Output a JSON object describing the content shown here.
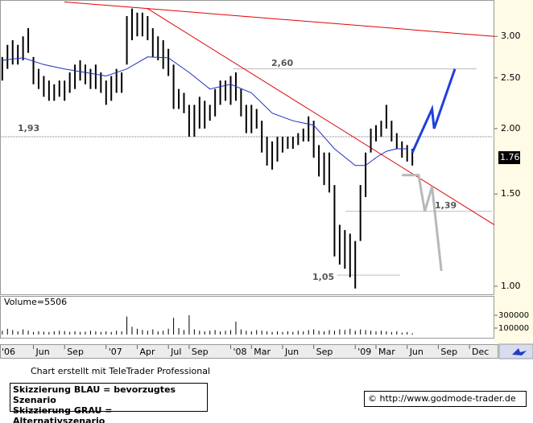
{
  "chart_data": {
    "type": "stock",
    "log": true,
    "x": [
      2,
      2.5,
      3,
      3.5,
      4,
      4.5,
      5,
      5.5,
      6,
      6.5,
      7,
      7.5,
      8,
      8.5,
      9,
      9.5,
      10,
      10.5,
      11,
      11.5,
      12,
      12.5,
      13,
      13.5,
      14,
      14.5,
      15,
      15.5,
      16,
      16.5,
      17,
      17.5,
      18,
      18.5,
      19,
      19.5,
      20,
      20.5,
      21,
      21.5,
      22,
      22.5,
      23,
      23.5,
      24,
      24.5,
      25,
      25.5,
      26,
      26.5,
      27,
      27.5,
      28,
      28.5,
      29,
      29.5,
      30,
      30.5,
      31,
      31.5,
      32,
      32.5,
      33,
      33.5,
      34,
      34.5,
      35,
      35.5,
      36,
      36.5,
      37,
      37.5,
      38,
      38.5,
      39,
      39.5,
      40,
      40.5,
      41,
      41.5
    ],
    "high": [
      2.74,
      2.89,
      2.95,
      2.89,
      3.0,
      3.11,
      2.74,
      2.6,
      2.52,
      2.47,
      2.43,
      2.47,
      2.47,
      2.56,
      2.65,
      2.7,
      2.65,
      2.6,
      2.65,
      2.56,
      2.47,
      2.52,
      2.6,
      2.56,
      3.28,
      3.39,
      3.33,
      3.33,
      3.28,
      3.11,
      3.0,
      2.95,
      2.84,
      2.65,
      2.38,
      2.34,
      2.22,
      2.22,
      2.3,
      2.26,
      2.22,
      2.38,
      2.47,
      2.47,
      2.52,
      2.56,
      2.38,
      2.22,
      2.22,
      2.18,
      2.07,
      1.93,
      1.89,
      1.93,
      1.93,
      1.93,
      1.93,
      1.96,
      2.0,
      2.11,
      2.07,
      1.86,
      1.8,
      1.8,
      1.56,
      1.31,
      1.28,
      1.26,
      1.22,
      1.56,
      1.8,
      2.0,
      2.03,
      2.07,
      2.22,
      2.07,
      1.96,
      1.89,
      1.86,
      1.83
    ],
    "low": [
      2.47,
      2.6,
      2.65,
      2.65,
      2.7,
      2.79,
      2.43,
      2.38,
      2.3,
      2.26,
      2.26,
      2.3,
      2.26,
      2.34,
      2.38,
      2.47,
      2.43,
      2.38,
      2.38,
      2.34,
      2.22,
      2.26,
      2.34,
      2.34,
      2.65,
      2.95,
      3.0,
      3.0,
      2.95,
      2.74,
      2.7,
      2.6,
      2.52,
      2.18,
      2.18,
      2.14,
      1.93,
      1.93,
      2.0,
      2.0,
      2.07,
      2.11,
      2.22,
      2.26,
      2.22,
      2.26,
      2.11,
      1.96,
      1.96,
      2.0,
      1.8,
      1.7,
      1.67,
      1.73,
      1.8,
      1.83,
      1.83,
      1.86,
      1.89,
      1.89,
      1.76,
      1.62,
      1.56,
      1.51,
      1.14,
      1.1,
      1.08,
      1.04,
      0.99,
      1.22,
      1.48,
      1.8,
      1.89,
      1.93,
      2.0,
      1.89,
      1.83,
      1.76,
      1.73,
      1.7
    ],
    "color": "#000000",
    "xlim": [
      1.78,
      49.4
    ],
    "xticks": [
      {
        "value": 0,
        "label": "'06"
      },
      {
        "value": 5,
        "label": "Jun"
      },
      {
        "value": 8,
        "label": "Sep"
      },
      {
        "value": 12,
        "label": "'07"
      },
      {
        "value": 15,
        "label": "Apr"
      },
      {
        "value": 18,
        "label": "Jul"
      },
      {
        "value": 20,
        "label": "Sep"
      },
      {
        "value": 24,
        "label": "'08"
      },
      {
        "value": 26,
        "label": "Mar"
      },
      {
        "value": 29,
        "label": "Jun"
      },
      {
        "value": 32,
        "label": "Sep"
      },
      {
        "value": 36,
        "label": "'09"
      },
      {
        "value": 38,
        "label": "Mar"
      },
      {
        "value": 41,
        "label": "Jun"
      },
      {
        "value": 44,
        "label": "Sep"
      },
      {
        "value": 47,
        "label": "Dec"
      }
    ],
    "ylim": [
      0.965,
      3.52
    ],
    "yticks": [
      {
        "value": 3,
        "label": "3.00"
      },
      {
        "value": 2.5,
        "label": "2.50"
      },
      {
        "value": 2,
        "label": "2.00"
      },
      {
        "value": 1.5,
        "label": "1.50"
      },
      {
        "value": 1,
        "label": "1.00"
      }
    ],
    "last": 1.76,
    "moving_average": {
      "color": "#1f2fbf",
      "x": [
        2,
        4,
        6,
        8,
        10,
        12,
        14,
        16,
        18,
        20,
        22,
        24,
        26,
        28,
        30,
        32,
        34,
        36,
        37,
        38,
        39,
        40,
        41
      ],
      "values": [
        2.7,
        2.73,
        2.65,
        2.6,
        2.56,
        2.52,
        2.6,
        2.74,
        2.73,
        2.56,
        2.38,
        2.43,
        2.34,
        2.14,
        2.07,
        2.03,
        1.83,
        1.7,
        1.7,
        1.76,
        1.81,
        1.83,
        1.83
      ]
    },
    "trendlines": [
      {
        "color": "#e00000",
        "x": [
          7.98,
          49.4
        ],
        "values": [
          3.49,
          3.0
        ]
      },
      {
        "color": "#e00000",
        "x": [
          15.97,
          49.4
        ],
        "values": [
          3.39,
          1.31
        ]
      }
    ],
    "levels": [
      {
        "value": 2.6,
        "label": "2,60",
        "x": [
          24.3,
          47.7
        ]
      },
      {
        "value": 1.93,
        "label": "1,93",
        "x": [
          1.78,
          49.2
        ]
      },
      {
        "value": 1.39,
        "label": "1,39",
        "x": [
          35.1,
          49.2
        ]
      },
      {
        "value": 1.05,
        "label": "1,05",
        "x": [
          34.3,
          40.3
        ]
      }
    ],
    "scenarios": [
      {
        "name": "Skizzierung BLAU = bevorzugtes Szenario",
        "color": "#1f3fdf",
        "x": [
          41.5,
          43.4,
          43.6,
          45.6
        ],
        "values": [
          1.8,
          2.18,
          2.0,
          2.6
        ]
      },
      {
        "name": "Skizzierung GRAU = Alternativszenario",
        "color": "#b8b8b8",
        "x": [
          40.5,
          42.1,
          42.7,
          43.4,
          44.3
        ],
        "values": [
          1.63,
          1.63,
          1.39,
          1.55,
          1.07
        ]
      }
    ],
    "volume": {
      "label": "Volume=5506",
      "color": "#000000",
      "ylim": [
        0,
        575000
      ],
      "yticks": [
        300000,
        100000
      ],
      "values": [
        60000,
        90000,
        70000,
        50000,
        80000,
        60000,
        40000,
        50000,
        45000,
        40000,
        50000,
        60000,
        55000,
        40000,
        50000,
        40000,
        45000,
        60000,
        50000,
        40000,
        50000,
        40000,
        60000,
        50000,
        280000,
        120000,
        90000,
        70000,
        60000,
        80000,
        50000,
        60000,
        90000,
        260000,
        100000,
        70000,
        300000,
        80000,
        60000,
        50000,
        60000,
        70000,
        50000,
        60000,
        70000,
        200000,
        80000,
        60000,
        50000,
        70000,
        60000,
        50000,
        40000,
        50000,
        40000,
        50000,
        40000,
        60000,
        50000,
        70000,
        80000,
        60000,
        50000,
        70000,
        60000,
        80000,
        70000,
        90000,
        60000,
        80000,
        70000,
        60000,
        50000,
        60000,
        50000,
        40000,
        50000,
        30000,
        40000,
        20000
      ]
    }
  },
  "footer": {
    "credit": "Chart erstellt mit TeleTrader Professional",
    "source": "© http://www.godmode-trader.de"
  }
}
